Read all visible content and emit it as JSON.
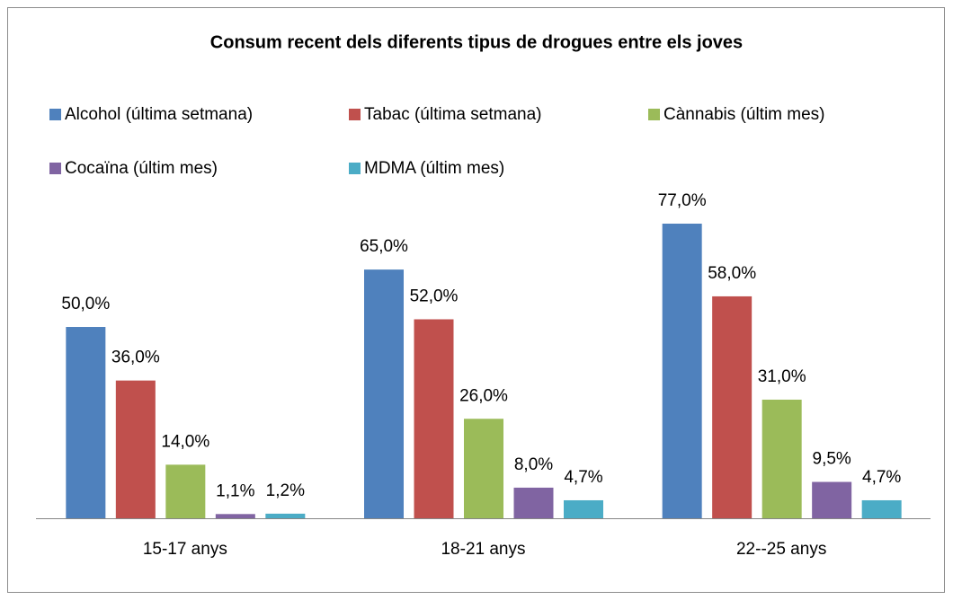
{
  "chart_data": {
    "type": "bar",
    "title": "Consum recent dels diferents tipus de drogues entre els joves",
    "categories": [
      "15-17 anys",
      "18-21 anys",
      "22--25 anys"
    ],
    "series": [
      {
        "name": "Alcohol (última setmana)",
        "color": "#4f81bd",
        "values": [
          50,
          65,
          77
        ],
        "value_labels": [
          "50,0%",
          "65,0%",
          "77,0%"
        ]
      },
      {
        "name": "Tabac (última setmana)",
        "color": "#c0504d",
        "values": [
          36,
          52,
          58
        ],
        "value_labels": [
          "36,0%",
          "52,0%",
          "58,0%"
        ]
      },
      {
        "name": "Cànnabis (últim mes)",
        "color": "#9bbb59",
        "values": [
          14,
          26,
          31
        ],
        "value_labels": [
          "14,0%",
          "26,0%",
          "31,0%"
        ]
      },
      {
        "name": "Cocaïna (últim mes)",
        "color": "#8064a2",
        "values": [
          1.1,
          8,
          9.5
        ],
        "value_labels": [
          "1,1%",
          "8,0%",
          "9,5%"
        ]
      },
      {
        "name": "MDMA (últim mes)",
        "color": "#4bacc6",
        "values": [
          1.2,
          4.7,
          4.7
        ],
        "value_labels": [
          "1,2%",
          "4,7%",
          "4,7%"
        ]
      }
    ],
    "legend": "top"
  }
}
